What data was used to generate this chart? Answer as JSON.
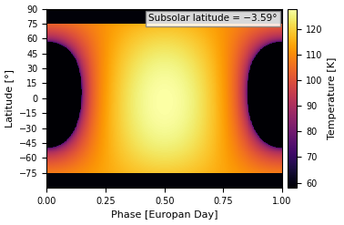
{
  "title_annotation": "Subsolar latitude = −3.59°",
  "xlabel": "Phase [Europan Day]",
  "ylabel": "Latitude [°]",
  "cbar_label": "Temperature [K]",
  "xlim": [
    0.0,
    1.0
  ],
  "ylim": [
    -90,
    90
  ],
  "xticks": [
    0.0,
    0.25,
    0.5,
    0.75,
    1.0
  ],
  "yticks": [
    -75,
    -60,
    -45,
    -30,
    -15,
    0,
    15,
    30,
    45,
    60,
    75,
    90
  ],
  "cbar_ticks": [
    60,
    70,
    80,
    90,
    100,
    110,
    120
  ],
  "T_min": 58.0,
  "T_max": 128.0,
  "subsolar_lat": -3.59,
  "subsolar_phase": 0.5,
  "colormap": "inferno",
  "figsize": [
    3.78,
    2.47
  ],
  "dpi": 100,
  "polar_cutoff": 75.0,
  "polar_cutoff_temp": 59.0
}
